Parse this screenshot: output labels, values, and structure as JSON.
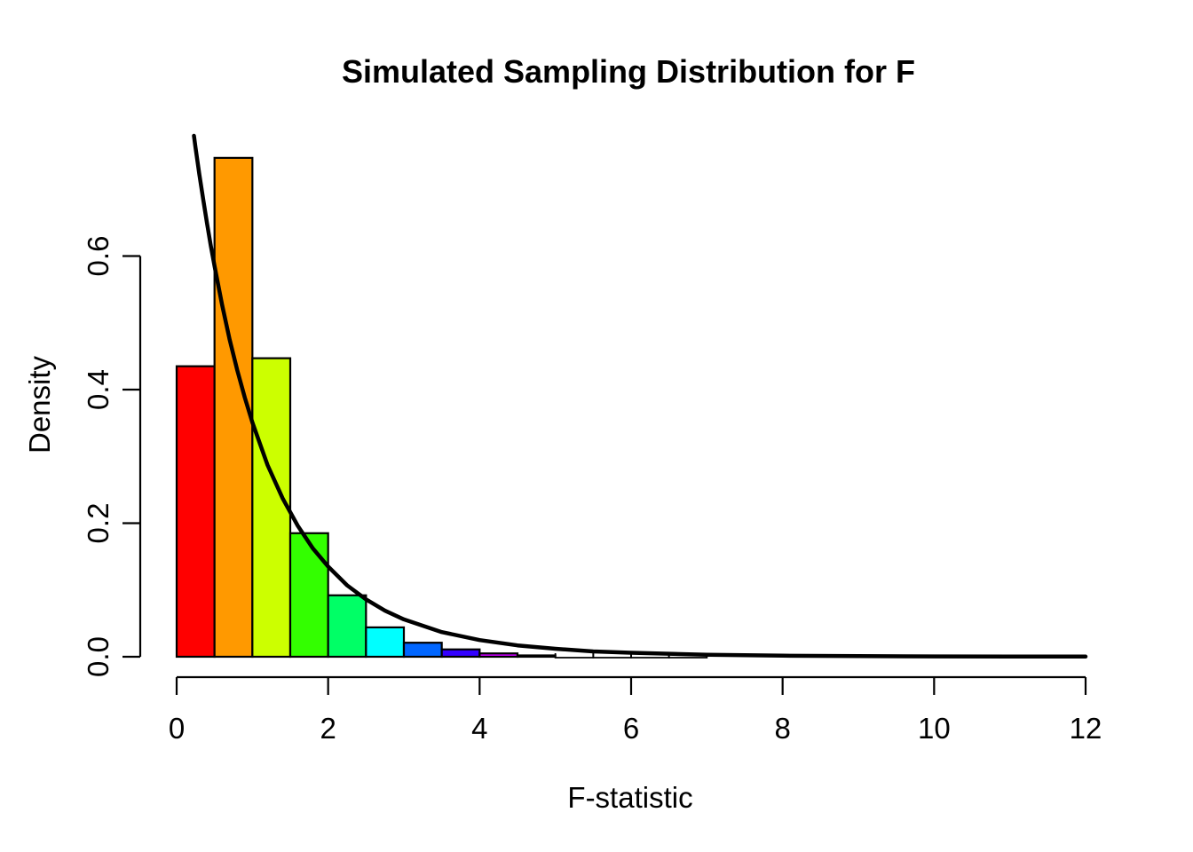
{
  "figure": {
    "background": "#FFFFFF",
    "foreground": "#000000"
  },
  "chart_data": {
    "type": "bar",
    "subtype": "histogram-with-density-curve",
    "title": "Simulated Sampling Distribution for F",
    "xlabel": "F-statistic",
    "ylabel": "Density",
    "xlim": [
      -0.48,
      12.48
    ],
    "ylim": [
      -0.03,
      0.78
    ],
    "grid": false,
    "legend_position": "none",
    "x_ticks": {
      "values": [
        0,
        2,
        4,
        6,
        8,
        10,
        12
      ],
      "labels": [
        "0",
        "2",
        "4",
        "6",
        "8",
        "10",
        "12"
      ]
    },
    "y_ticks": {
      "values": [
        0,
        0.2,
        0.4,
        0.6
      ],
      "labels": [
        "0.0",
        "0.2",
        "0.4",
        "0.6"
      ]
    },
    "bins": {
      "breaks": [
        0,
        0.5,
        1.0,
        1.5,
        2.0,
        2.5,
        3.0,
        3.5,
        4.0,
        4.5,
        5.0,
        5.5,
        6.0,
        6.5,
        7.0
      ],
      "densities": [
        0.435,
        0.747,
        0.447,
        0.185,
        0.092,
        0.044,
        0.021,
        0.011,
        0.005,
        0.002,
        0,
        0,
        0,
        0
      ],
      "colors": [
        "#FF0000",
        "#FF9900",
        "#CCFF00",
        "#33FF00",
        "#00FF66",
        "#00FFFF",
        "#0066FF",
        "#3300FF",
        "#CC00FF",
        "#FF0099",
        "#FF0000",
        "#FF9900",
        "#CCFF00",
        "#33FF00"
      ],
      "border_color": "#000000"
    },
    "curve": {
      "name": "theoretical F density curve",
      "color": "#000000",
      "line_width": 4.5,
      "points": [
        [
          0.229,
          0.78
        ],
        [
          0.25,
          0.762
        ],
        [
          0.3,
          0.722
        ],
        [
          0.35,
          0.685
        ],
        [
          0.4,
          0.65
        ],
        [
          0.45,
          0.616
        ],
        [
          0.5,
          0.585
        ],
        [
          0.6,
          0.527
        ],
        [
          0.7,
          0.475
        ],
        [
          0.8,
          0.429
        ],
        [
          0.9,
          0.388
        ],
        [
          1.0,
          0.351
        ],
        [
          1.2,
          0.287
        ],
        [
          1.4,
          0.237
        ],
        [
          1.6,
          0.196
        ],
        [
          1.8,
          0.162
        ],
        [
          2.0,
          0.135
        ],
        [
          2.25,
          0.107
        ],
        [
          2.5,
          0.086
        ],
        [
          2.75,
          0.069
        ],
        [
          3.0,
          0.056
        ],
        [
          3.5,
          0.037
        ],
        [
          4.0,
          0.025
        ],
        [
          4.5,
          0.017
        ],
        [
          5.0,
          0.012
        ],
        [
          5.5,
          0.008
        ],
        [
          6.0,
          0.006
        ],
        [
          7.0,
          0.003
        ],
        [
          8.0,
          0.0016
        ],
        [
          9.0,
          0.0009
        ],
        [
          10.0,
          0.0005
        ],
        [
          11.0,
          0.0003
        ],
        [
          12.0,
          0.0002
        ]
      ]
    }
  }
}
